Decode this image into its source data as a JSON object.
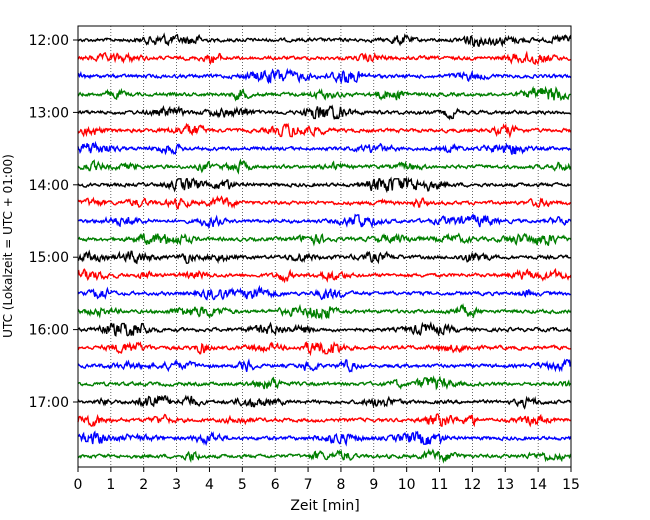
{
  "chart_data": {
    "type": "line",
    "title": "",
    "xlabel": "Zeit  [min]",
    "ylabel": "UTC (Lokalzeit = UTC + 01:00)",
    "xlim": [
      0,
      15
    ],
    "x_ticks": [
      "0",
      "1",
      "2",
      "3",
      "4",
      "5",
      "6",
      "7",
      "8",
      "9",
      "10",
      "11",
      "12",
      "13",
      "14",
      "15"
    ],
    "y_ticks": [
      "12:00",
      "13:00",
      "14:00",
      "15:00",
      "16:00",
      "17:00"
    ],
    "y_start": "12:00",
    "y_end": "17:45",
    "trace_interval_minutes": 15,
    "trace_count": 24,
    "trace_colors": [
      "#000000",
      "#ff0000",
      "#0000ff",
      "#007f00"
    ],
    "grid": "vertical-dotted",
    "legend": "none"
  }
}
